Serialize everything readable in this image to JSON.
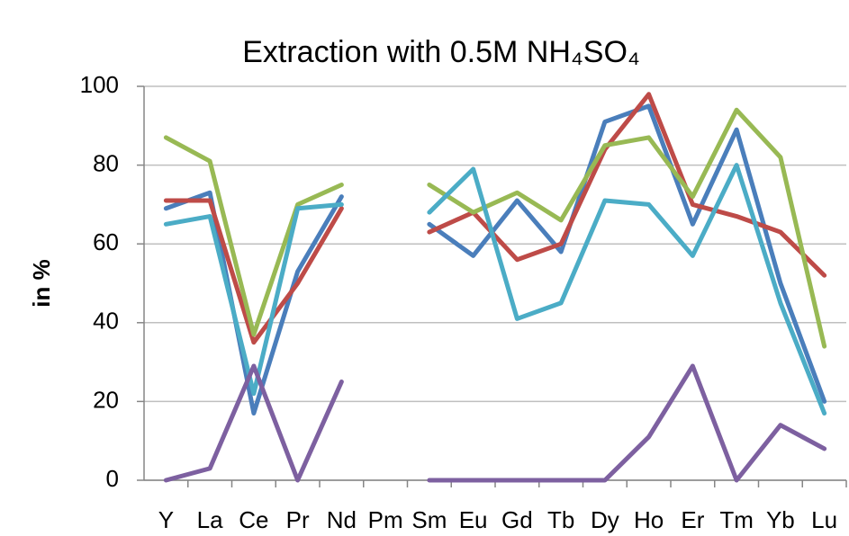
{
  "chart_data": {
    "type": "line",
    "title": "Extraction with 0.5M NH₄SO₄",
    "y_label": "in %",
    "categories": [
      "Y",
      "La",
      "Ce",
      "Pr",
      "Nd",
      "Pm",
      "Sm",
      "Eu",
      "Gd",
      "Tb",
      "Dy",
      "Ho",
      "Er",
      "Tm",
      "Yb",
      "Lu"
    ],
    "series": [
      {
        "color": "#4a7ebb",
        "values": [
          69,
          73,
          17,
          53,
          72,
          null,
          65,
          57,
          71,
          58,
          91,
          95,
          65,
          89,
          50,
          20
        ]
      },
      {
        "color": "#be4b48",
        "values": [
          71,
          71,
          35,
          50,
          69,
          null,
          63,
          68,
          56,
          60,
          84,
          98,
          70,
          67,
          63,
          52
        ]
      },
      {
        "color": "#98b954",
        "values": [
          87,
          81,
          37,
          70,
          75,
          null,
          75,
          68,
          73,
          66,
          85,
          87,
          72,
          94,
          82,
          34
        ]
      },
      {
        "color": "#4bacc6",
        "values": [
          65,
          67,
          22,
          69,
          70,
          null,
          68,
          79,
          41,
          45,
          71,
          70,
          57,
          80,
          45,
          17
        ]
      },
      {
        "color": "#7d60a0",
        "values": [
          0,
          3,
          29,
          0,
          25,
          null,
          0,
          0,
          0,
          0,
          0,
          11,
          29,
          0,
          14,
          8
        ]
      }
    ],
    "ylim": [
      0,
      100
    ],
    "yticks": [
      0,
      20,
      40,
      60,
      80,
      100
    ],
    "grid": true
  }
}
